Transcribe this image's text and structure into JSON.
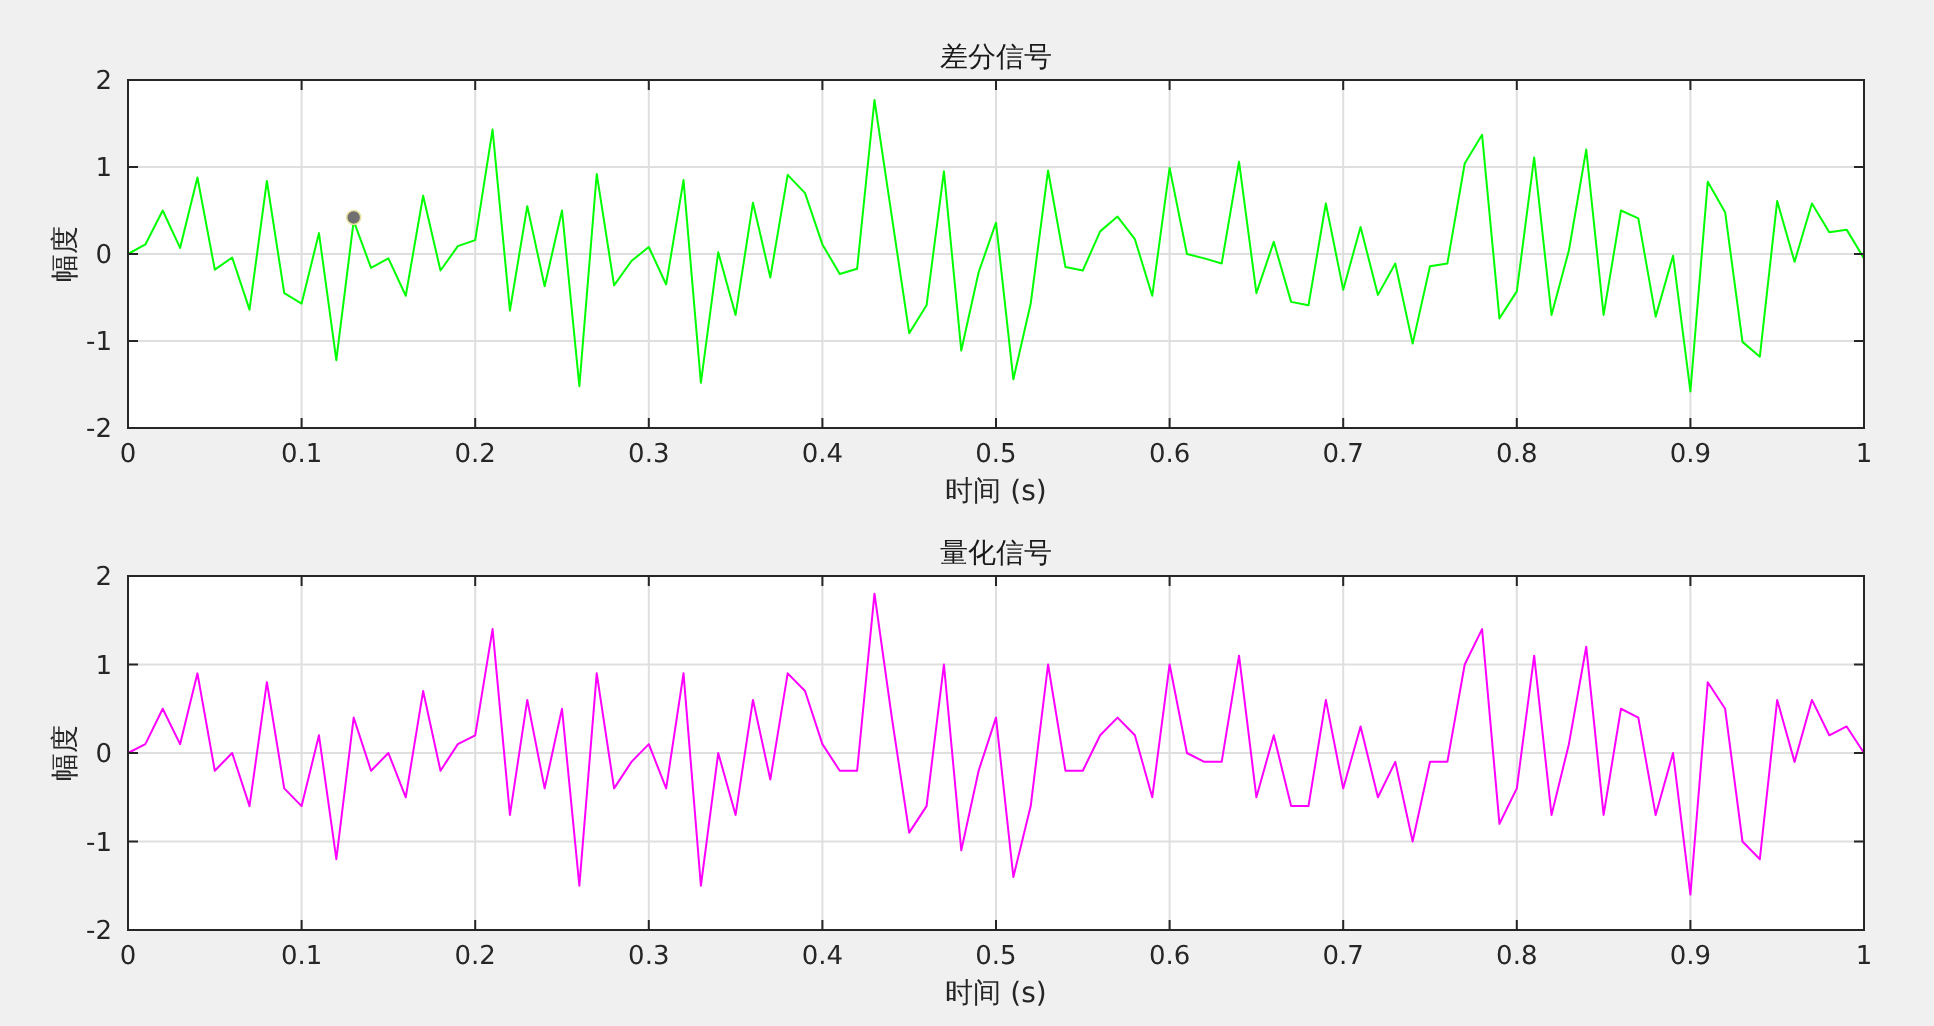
{
  "chart_data": [
    {
      "type": "line",
      "title": "差分信号",
      "xlabel": "时间 (s)",
      "ylabel": "幅度",
      "xlim": [
        0,
        1
      ],
      "xticks": [
        0,
        0.1,
        0.2,
        0.3,
        0.4,
        0.5,
        0.6,
        0.7,
        0.8,
        0.9,
        1
      ],
      "ylim": [
        -2,
        2
      ],
      "yticks": [
        -2,
        -1,
        0,
        1,
        2
      ],
      "grid": true,
      "line_style": "solid",
      "x": [
        0,
        0.01,
        0.02,
        0.03,
        0.04,
        0.05,
        0.06,
        0.07,
        0.08,
        0.09,
        0.1,
        0.11,
        0.12,
        0.13,
        0.14,
        0.15,
        0.16,
        0.17,
        0.18,
        0.19,
        0.2,
        0.21,
        0.22,
        0.23,
        0.24,
        0.25,
        0.26,
        0.27,
        0.28,
        0.29,
        0.3,
        0.31,
        0.32,
        0.33,
        0.34,
        0.35,
        0.36,
        0.37,
        0.38,
        0.39,
        0.4,
        0.41,
        0.42,
        0.43,
        0.44,
        0.45,
        0.46,
        0.47,
        0.48,
        0.49,
        0.5,
        0.51,
        0.52,
        0.53,
        0.54,
        0.55,
        0.56,
        0.57,
        0.58,
        0.59,
        0.6,
        0.61,
        0.62,
        0.63,
        0.64,
        0.65,
        0.66,
        0.67,
        0.68,
        0.69,
        0.7,
        0.71,
        0.72,
        0.73,
        0.74,
        0.75,
        0.76,
        0.77,
        0.78,
        0.79,
        0.8,
        0.81,
        0.82,
        0.83,
        0.84,
        0.85,
        0.86,
        0.87,
        0.88,
        0.89,
        0.9,
        0.91,
        0.92,
        0.93,
        0.94,
        0.95,
        0.96,
        0.97,
        0.98,
        0.99,
        1
      ],
      "series": [
        {
          "color": "#00ff00",
          "values": [
            0,
            0.11,
            0.5,
            0.07,
            0.88,
            -0.18,
            -0.04,
            -0.64,
            0.84,
            -0.45,
            -0.57,
            0.24,
            -1.22,
            0.38,
            -0.16,
            -0.05,
            -0.48,
            0.67,
            -0.19,
            0.09,
            0.16,
            1.43,
            -0.65,
            0.55,
            -0.37,
            0.5,
            -1.52,
            0.92,
            -0.36,
            -0.08,
            0.08,
            -0.35,
            0.85,
            -1.48,
            0.02,
            -0.7,
            0.59,
            -0.27,
            0.91,
            0.7,
            0.11,
            -0.23,
            -0.17,
            1.77,
            0.43,
            -0.91,
            -0.59,
            0.95,
            -1.11,
            -0.21,
            0.36,
            -1.44,
            -0.57,
            0.96,
            -0.15,
            -0.19,
            0.26,
            0.43,
            0.17,
            -0.48,
            0.99,
            0,
            -0.05,
            -0.11,
            1.06,
            -0.45,
            0.14,
            -0.55,
            -0.59,
            0.58,
            -0.41,
            0.31,
            -0.47,
            -0.11,
            -1.03,
            -0.14,
            -0.11,
            1.04,
            1.37,
            -0.74,
            -0.43,
            1.11,
            -0.7,
            0.04,
            1.2,
            -0.7,
            0.5,
            0.41,
            -0.72,
            -0.02,
            -1.58,
            0.83,
            0.48,
            -1.01,
            -1.18,
            0.61,
            -0.09,
            0.58,
            0.25,
            0.28,
            -0.05
          ]
        },
        {
          "type": "scatter",
          "color": "#707070",
          "marker": "circle",
          "x": [
            0.13
          ],
          "values": [
            0.42
          ]
        }
      ]
    },
    {
      "type": "line",
      "title": "量化信号",
      "xlabel": "时间 (s)",
      "ylabel": "幅度",
      "xlim": [
        0,
        1
      ],
      "xticks": [
        0,
        0.1,
        0.2,
        0.3,
        0.4,
        0.5,
        0.6,
        0.7,
        0.8,
        0.9,
        1
      ],
      "ylim": [
        -2,
        2
      ],
      "yticks": [
        -2,
        -1,
        0,
        1,
        2
      ],
      "grid": true,
      "line_style": "solid",
      "x": [
        0,
        0.01,
        0.02,
        0.03,
        0.04,
        0.05,
        0.06,
        0.07,
        0.08,
        0.09,
        0.1,
        0.11,
        0.12,
        0.13,
        0.14,
        0.15,
        0.16,
        0.17,
        0.18,
        0.19,
        0.2,
        0.21,
        0.22,
        0.23,
        0.24,
        0.25,
        0.26,
        0.27,
        0.28,
        0.29,
        0.3,
        0.31,
        0.32,
        0.33,
        0.34,
        0.35,
        0.36,
        0.37,
        0.38,
        0.39,
        0.4,
        0.41,
        0.42,
        0.43,
        0.44,
        0.45,
        0.46,
        0.47,
        0.48,
        0.49,
        0.5,
        0.51,
        0.52,
        0.53,
        0.54,
        0.55,
        0.56,
        0.57,
        0.58,
        0.59,
        0.6,
        0.61,
        0.62,
        0.63,
        0.64,
        0.65,
        0.66,
        0.67,
        0.68,
        0.69,
        0.7,
        0.71,
        0.72,
        0.73,
        0.74,
        0.75,
        0.76,
        0.77,
        0.78,
        0.79,
        0.8,
        0.81,
        0.82,
        0.83,
        0.84,
        0.85,
        0.86,
        0.87,
        0.88,
        0.89,
        0.9,
        0.91,
        0.92,
        0.93,
        0.94,
        0.95,
        0.96,
        0.97,
        0.98,
        0.99,
        1
      ],
      "series": [
        {
          "color": "#ff00ff",
          "values": [
            0,
            0.1,
            0.5,
            0.1,
            0.9,
            -0.2,
            0,
            -0.6,
            0.8,
            -0.4,
            -0.6,
            0.2,
            -1.2,
            0.4,
            -0.2,
            0,
            -0.5,
            0.7,
            -0.2,
            0.1,
            0.2,
            1.4,
            -0.7,
            0.6,
            -0.4,
            0.5,
            -1.5,
            0.9,
            -0.4,
            -0.1,
            0.1,
            -0.4,
            0.9,
            -1.5,
            0,
            -0.7,
            0.6,
            -0.3,
            0.9,
            0.7,
            0.1,
            -0.2,
            -0.2,
            1.8,
            0.4,
            -0.9,
            -0.6,
            1,
            -1.1,
            -0.2,
            0.4,
            -1.4,
            -0.6,
            1,
            -0.2,
            -0.2,
            0.2,
            0.4,
            0.2,
            -0.5,
            1,
            0,
            -0.1,
            -0.1,
            1.1,
            -0.5,
            0.2,
            -0.6,
            -0.6,
            0.6,
            -0.4,
            0.3,
            -0.5,
            -0.1,
            -1,
            -0.1,
            -0.1,
            1,
            1.4,
            -0.8,
            -0.4,
            1.1,
            -0.7,
            0.1,
            1.2,
            -0.7,
            0.5,
            0.4,
            -0.7,
            0,
            -1.6,
            0.8,
            0.5,
            -1,
            -1.2,
            0.6,
            -0.1,
            0.6,
            0.2,
            0.3,
            0
          ]
        }
      ]
    }
  ]
}
